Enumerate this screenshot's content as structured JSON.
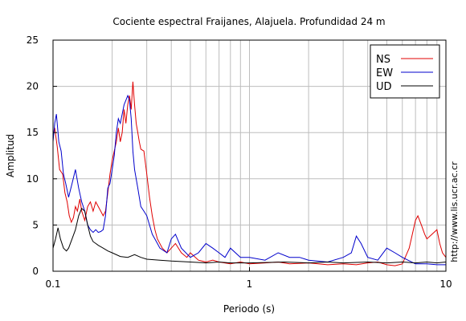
{
  "chart_data": {
    "type": "line",
    "title": "Cociente espectral Fraijanes, Alajuela. Profundidad 24 m",
    "xlabel": "Periodo (s)",
    "ylabel": "Amplitud",
    "xscale": "log",
    "xlim": [
      0.1,
      10
    ],
    "ylim": [
      0,
      25
    ],
    "x_ticks": [
      0.1,
      1,
      10
    ],
    "x_tick_labels": [
      "0.1",
      "1",
      "10"
    ],
    "y_ticks": [
      0,
      5,
      10,
      15,
      20,
      25
    ],
    "y_tick_labels": [
      "0",
      "5",
      "10",
      "15",
      "20",
      "25"
    ],
    "grid": true,
    "legend_position": "top-right",
    "credit": "http://www.lis.ucr.ac.cr",
    "series": [
      {
        "name": "NS",
        "color": "#e00000",
        "points": [
          [
            0.1,
            14.5
          ],
          [
            0.102,
            15.5
          ],
          [
            0.105,
            13.5
          ],
          [
            0.108,
            11
          ],
          [
            0.112,
            10.5
          ],
          [
            0.115,
            8.5
          ],
          [
            0.118,
            7.5
          ],
          [
            0.121,
            6
          ],
          [
            0.124,
            5.3
          ],
          [
            0.127,
            5.8
          ],
          [
            0.13,
            7
          ],
          [
            0.133,
            6.5
          ],
          [
            0.137,
            7.8
          ],
          [
            0.14,
            6.5
          ],
          [
            0.145,
            5.5
          ],
          [
            0.15,
            7
          ],
          [
            0.155,
            7.5
          ],
          [
            0.16,
            6.5
          ],
          [
            0.165,
            7.5
          ],
          [
            0.17,
            7
          ],
          [
            0.175,
            6.5
          ],
          [
            0.18,
            6
          ],
          [
            0.185,
            6.5
          ],
          [
            0.19,
            8.5
          ],
          [
            0.195,
            10.5
          ],
          [
            0.2,
            12
          ],
          [
            0.205,
            13
          ],
          [
            0.21,
            14
          ],
          [
            0.215,
            15.5
          ],
          [
            0.22,
            14
          ],
          [
            0.225,
            15
          ],
          [
            0.23,
            17.5
          ],
          [
            0.235,
            16
          ],
          [
            0.24,
            18
          ],
          [
            0.245,
            19
          ],
          [
            0.25,
            17.5
          ],
          [
            0.255,
            20.5
          ],
          [
            0.26,
            18
          ],
          [
            0.265,
            16
          ],
          [
            0.27,
            15
          ],
          [
            0.275,
            14
          ],
          [
            0.28,
            13.2
          ],
          [
            0.29,
            13
          ],
          [
            0.3,
            10.5
          ],
          [
            0.31,
            8
          ],
          [
            0.32,
            6
          ],
          [
            0.33,
            4.5
          ],
          [
            0.34,
            3.5
          ],
          [
            0.36,
            2.5
          ],
          [
            0.38,
            2
          ],
          [
            0.4,
            2.5
          ],
          [
            0.42,
            3
          ],
          [
            0.45,
            2
          ],
          [
            0.48,
            1.5
          ],
          [
            0.5,
            2
          ],
          [
            0.55,
            1.2
          ],
          [
            0.6,
            1
          ],
          [
            0.65,
            1.2
          ],
          [
            0.7,
            1
          ],
          [
            0.8,
            0.8
          ],
          [
            0.9,
            1
          ],
          [
            1,
            0.8
          ],
          [
            1.2,
            0.9
          ],
          [
            1.4,
            1
          ],
          [
            1.6,
            0.8
          ],
          [
            2,
            0.9
          ],
          [
            2.5,
            0.7
          ],
          [
            3,
            0.8
          ],
          [
            3.5,
            0.7
          ],
          [
            4,
            0.9
          ],
          [
            4.5,
            1
          ],
          [
            5,
            0.7
          ],
          [
            5.5,
            0.6
          ],
          [
            6,
            0.8
          ],
          [
            6.5,
            2.5
          ],
          [
            7,
            5.5
          ],
          [
            7.2,
            6
          ],
          [
            7.5,
            5
          ],
          [
            7.8,
            4
          ],
          [
            8,
            3.5
          ],
          [
            8.5,
            4
          ],
          [
            9,
            4.5
          ],
          [
            9.3,
            3
          ],
          [
            9.6,
            2
          ],
          [
            10,
            1.5
          ]
        ]
      },
      {
        "name": "EW",
        "color": "#0000cc",
        "points": [
          [
            0.1,
            14
          ],
          [
            0.102,
            16
          ],
          [
            0.104,
            17
          ],
          [
            0.107,
            14
          ],
          [
            0.11,
            13
          ],
          [
            0.113,
            10.5
          ],
          [
            0.116,
            9.5
          ],
          [
            0.12,
            8
          ],
          [
            0.125,
            9.5
          ],
          [
            0.13,
            11
          ],
          [
            0.135,
            9
          ],
          [
            0.14,
            7.5
          ],
          [
            0.145,
            6.5
          ],
          [
            0.15,
            5
          ],
          [
            0.155,
            4.5
          ],
          [
            0.16,
            4.2
          ],
          [
            0.165,
            4.5
          ],
          [
            0.17,
            4.2
          ],
          [
            0.175,
            4.3
          ],
          [
            0.18,
            4.5
          ],
          [
            0.185,
            6
          ],
          [
            0.19,
            9
          ],
          [
            0.195,
            9.5
          ],
          [
            0.2,
            11
          ],
          [
            0.205,
            12.5
          ],
          [
            0.21,
            15
          ],
          [
            0.215,
            16.5
          ],
          [
            0.22,
            16
          ],
          [
            0.225,
            17
          ],
          [
            0.23,
            18
          ],
          [
            0.235,
            18.5
          ],
          [
            0.24,
            19
          ],
          [
            0.245,
            18.5
          ],
          [
            0.25,
            16.5
          ],
          [
            0.255,
            13
          ],
          [
            0.26,
            11
          ],
          [
            0.265,
            10
          ],
          [
            0.27,
            9
          ],
          [
            0.28,
            7
          ],
          [
            0.29,
            6.5
          ],
          [
            0.3,
            6
          ],
          [
            0.31,
            5
          ],
          [
            0.32,
            4
          ],
          [
            0.33,
            3.5
          ],
          [
            0.34,
            3
          ],
          [
            0.35,
            2.5
          ],
          [
            0.38,
            2
          ],
          [
            0.4,
            3.5
          ],
          [
            0.42,
            4
          ],
          [
            0.45,
            2.5
          ],
          [
            0.5,
            1.5
          ],
          [
            0.55,
            2
          ],
          [
            0.6,
            3
          ],
          [
            0.65,
            2.5
          ],
          [
            0.7,
            2
          ],
          [
            0.75,
            1.5
          ],
          [
            0.8,
            2.5
          ],
          [
            0.9,
            1.5
          ],
          [
            1,
            1.5
          ],
          [
            1.2,
            1.2
          ],
          [
            1.4,
            2
          ],
          [
            1.6,
            1.5
          ],
          [
            1.8,
            1.5
          ],
          [
            2,
            1.2
          ],
          [
            2.5,
            1
          ],
          [
            3,
            1.5
          ],
          [
            3.3,
            2
          ],
          [
            3.5,
            3.8
          ],
          [
            3.7,
            3
          ],
          [
            4,
            1.5
          ],
          [
            4.5,
            1.2
          ],
          [
            5,
            2.5
          ],
          [
            5.5,
            2
          ],
          [
            6,
            1.5
          ],
          [
            7,
            0.8
          ],
          [
            8,
            0.8
          ],
          [
            9,
            0.7
          ],
          [
            10,
            0.7
          ]
        ]
      },
      {
        "name": "UD",
        "color": "#000000",
        "points": [
          [
            0.1,
            2.5
          ],
          [
            0.103,
            3.5
          ],
          [
            0.106,
            4.7
          ],
          [
            0.109,
            3.5
          ],
          [
            0.113,
            2.5
          ],
          [
            0.117,
            2.2
          ],
          [
            0.12,
            2.5
          ],
          [
            0.125,
            3.5
          ],
          [
            0.13,
            4.5
          ],
          [
            0.135,
            6
          ],
          [
            0.14,
            6.8
          ],
          [
            0.145,
            6.5
          ],
          [
            0.15,
            5
          ],
          [
            0.155,
            3.8
          ],
          [
            0.16,
            3.2
          ],
          [
            0.165,
            3
          ],
          [
            0.17,
            2.8
          ],
          [
            0.18,
            2.5
          ],
          [
            0.19,
            2.2
          ],
          [
            0.2,
            2
          ],
          [
            0.22,
            1.6
          ],
          [
            0.24,
            1.5
          ],
          [
            0.26,
            1.8
          ],
          [
            0.28,
            1.5
          ],
          [
            0.3,
            1.3
          ],
          [
            0.35,
            1.2
          ],
          [
            0.4,
            1.1
          ],
          [
            0.5,
            1
          ],
          [
            0.6,
            0.9
          ],
          [
            0.7,
            1
          ],
          [
            0.8,
            0.9
          ],
          [
            1,
            0.9
          ],
          [
            1.5,
            1
          ],
          [
            2,
            0.9
          ],
          [
            2.5,
            1
          ],
          [
            3,
            0.9
          ],
          [
            4,
            1
          ],
          [
            5,
            0.9
          ],
          [
            6,
            1
          ],
          [
            7,
            0.9
          ],
          [
            8,
            1
          ],
          [
            9,
            0.9
          ],
          [
            10,
            1
          ]
        ]
      }
    ]
  }
}
